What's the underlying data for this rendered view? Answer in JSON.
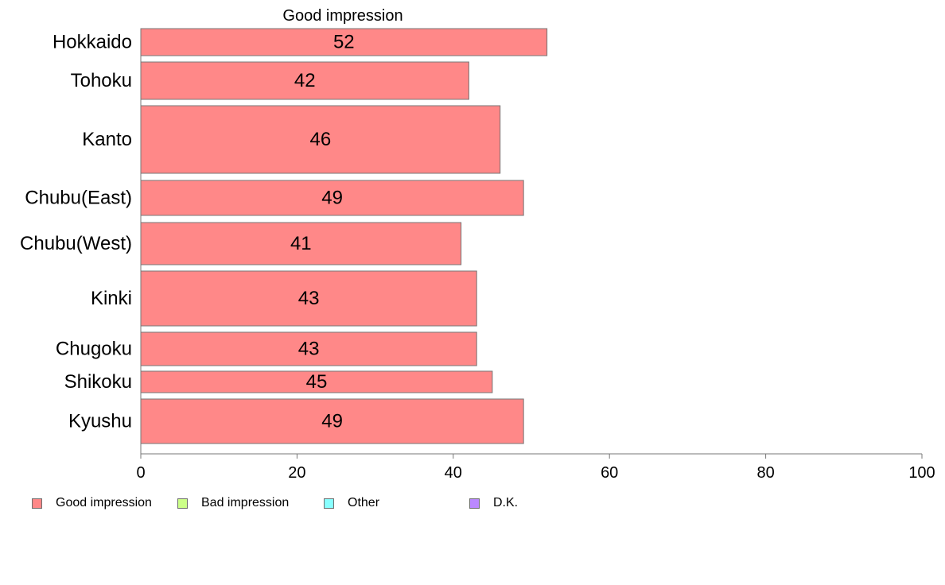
{
  "chart_data": {
    "type": "bar",
    "orientation": "horizontal",
    "title": "Good impression",
    "categories": [
      "Hokkaido",
      "Tohoku",
      "Kanto",
      "Chubu(East)",
      "Chubu(West)",
      "Kinki",
      "Chugoku",
      "Shikoku",
      "Kyushu"
    ],
    "series": [
      {
        "name": "Good impression",
        "color": "#ff8888",
        "values": [
          52,
          42,
          46,
          49,
          41,
          43,
          43,
          45,
          49
        ]
      }
    ],
    "xlim": [
      0,
      100
    ],
    "xticks": [
      0,
      20,
      40,
      60,
      80,
      100
    ],
    "grid": false,
    "legend_position": "bottom-left",
    "legend": [
      {
        "label": "Good impression",
        "color": "#ff8888"
      },
      {
        "label": "Bad impression",
        "color": "#ccff88"
      },
      {
        "label": "Other",
        "color": "#88ffff"
      },
      {
        "label": "D.K.",
        "color": "#bb88ff"
      }
    ]
  }
}
